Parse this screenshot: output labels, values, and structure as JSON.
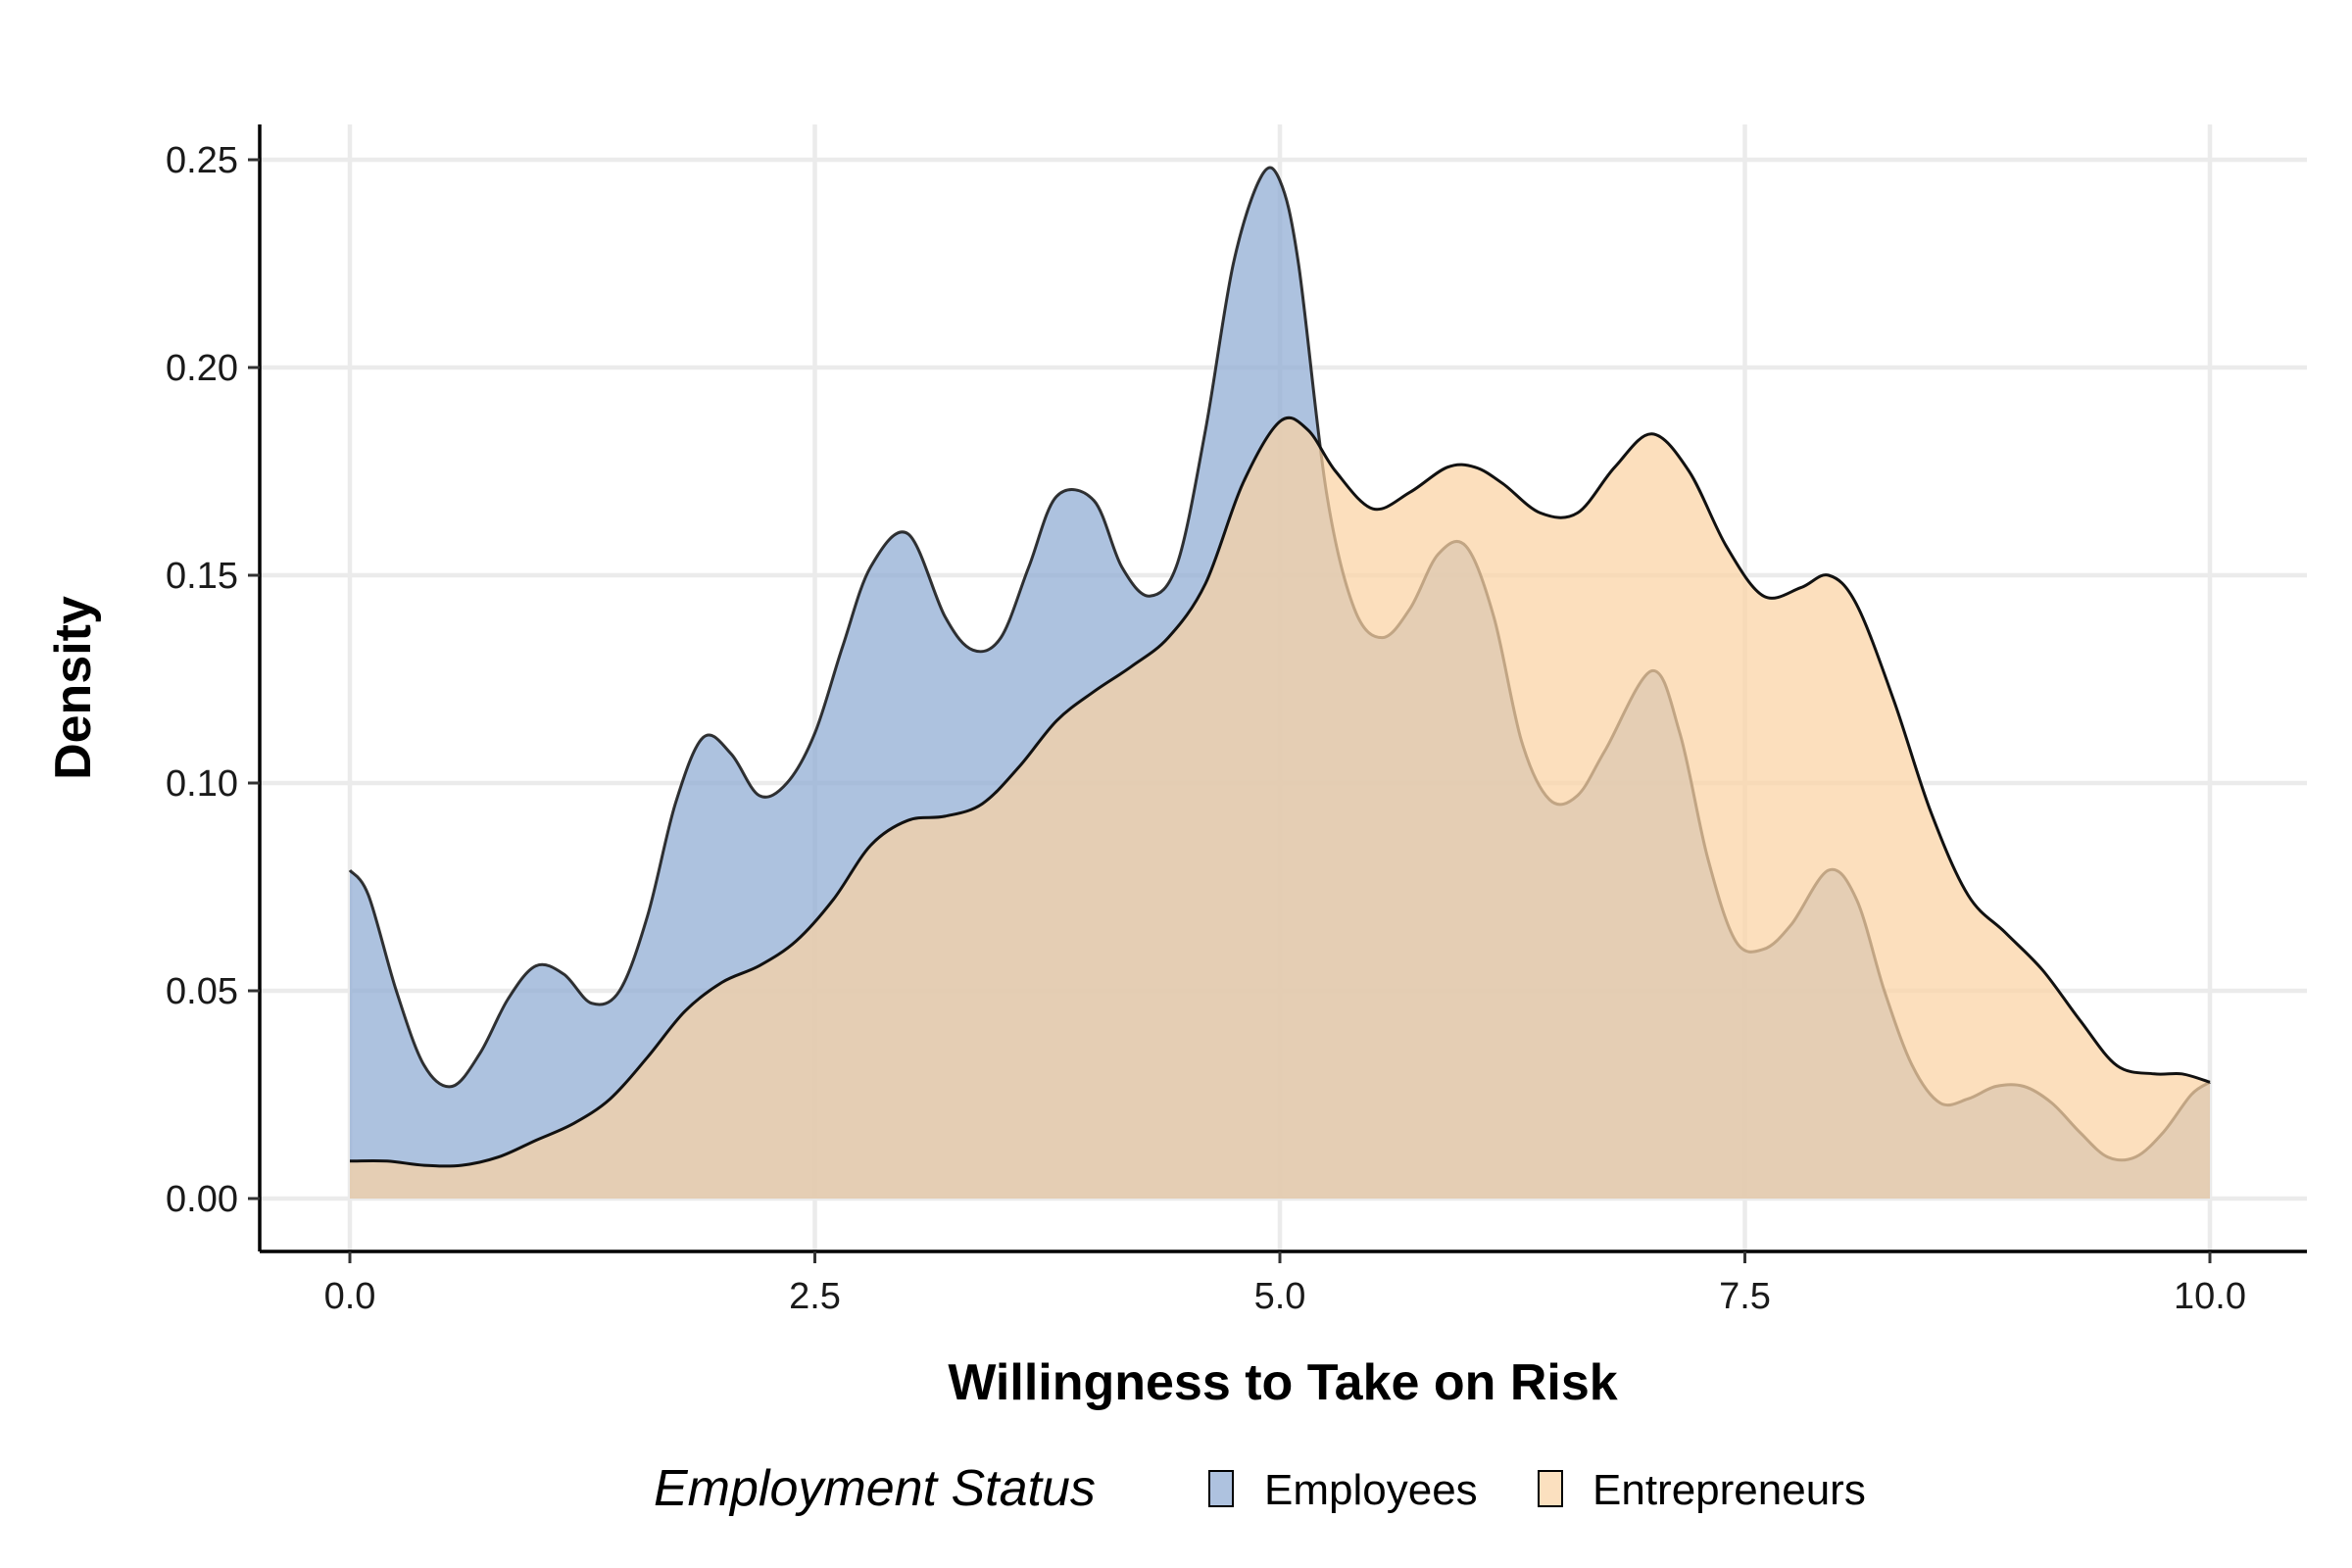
{
  "chart_data": {
    "type": "area",
    "xlabel": "Willingness to Take on Risk",
    "ylabel": "Density",
    "xlim": [
      0,
      10
    ],
    "ylim": [
      0,
      0.25
    ],
    "x_ticks": [
      0,
      2.5,
      5,
      7.5,
      10
    ],
    "x_tick_labels": [
      "0.0",
      "2.5",
      "5.0",
      "7.5",
      "10.0"
    ],
    "y_ticks": [
      0,
      0.05,
      0.1,
      0.15,
      0.2,
      0.25
    ],
    "y_tick_labels": [
      "0.00",
      "0.05",
      "0.10",
      "0.15",
      "0.20",
      "0.25"
    ],
    "grid": true,
    "legend": {
      "title": "Employment Status",
      "position": "bottom"
    },
    "series": [
      {
        "name": "Employees",
        "color": "#8eaad3",
        "x": [
          0,
          0.1,
          0.25,
          0.4,
          0.55,
          0.7,
          0.85,
          1.0,
          1.15,
          1.3,
          1.45,
          1.6,
          1.75,
          1.9,
          2.05,
          2.2,
          2.35,
          2.5,
          2.65,
          2.8,
          3.0,
          3.2,
          3.35,
          3.5,
          3.65,
          3.8,
          4.0,
          4.15,
          4.3,
          4.45,
          4.6,
          4.75,
          4.9,
          5.0,
          5.1,
          5.25,
          5.4,
          5.55,
          5.7,
          5.85,
          6.0,
          6.15,
          6.3,
          6.45,
          6.6,
          6.75,
          7.0,
          7.15,
          7.3,
          7.45,
          7.6,
          7.75,
          7.95,
          8.1,
          8.25,
          8.4,
          8.55,
          8.7,
          8.85,
          9.0,
          9.15,
          9.3,
          9.45,
          9.6,
          9.75,
          9.9,
          10.0
        ],
        "y": [
          0.079,
          0.073,
          0.05,
          0.032,
          0.027,
          0.035,
          0.048,
          0.056,
          0.054,
          0.047,
          0.05,
          0.068,
          0.095,
          0.111,
          0.107,
          0.097,
          0.1,
          0.112,
          0.133,
          0.152,
          0.16,
          0.14,
          0.132,
          0.135,
          0.152,
          0.169,
          0.168,
          0.152,
          0.145,
          0.153,
          0.185,
          0.225,
          0.246,
          0.245,
          0.225,
          0.17,
          0.142,
          0.135,
          0.142,
          0.155,
          0.157,
          0.14,
          0.11,
          0.096,
          0.097,
          0.108,
          0.127,
          0.112,
          0.082,
          0.062,
          0.06,
          0.066,
          0.079,
          0.072,
          0.05,
          0.032,
          0.023,
          0.024,
          0.027,
          0.027,
          0.023,
          0.016,
          0.01,
          0.01,
          0.016,
          0.025,
          0.028
        ]
      },
      {
        "name": "Entrepreneurs",
        "color": "#fbd3a3",
        "x": [
          0,
          0.2,
          0.4,
          0.6,
          0.8,
          1.0,
          1.2,
          1.4,
          1.6,
          1.8,
          2.0,
          2.2,
          2.4,
          2.6,
          2.8,
          3.0,
          3.2,
          3.4,
          3.6,
          3.8,
          4.0,
          4.2,
          4.4,
          4.6,
          4.8,
          5.0,
          5.15,
          5.3,
          5.5,
          5.7,
          5.9,
          6.05,
          6.2,
          6.4,
          6.6,
          6.8,
          7.0,
          7.2,
          7.4,
          7.6,
          7.8,
          7.95,
          8.1,
          8.3,
          8.5,
          8.7,
          8.9,
          9.1,
          9.3,
          9.5,
          9.7,
          9.85,
          10.0
        ],
        "y": [
          0.009,
          0.009,
          0.008,
          0.008,
          0.01,
          0.014,
          0.018,
          0.024,
          0.034,
          0.045,
          0.052,
          0.056,
          0.062,
          0.072,
          0.085,
          0.091,
          0.092,
          0.095,
          0.104,
          0.115,
          0.122,
          0.128,
          0.135,
          0.148,
          0.172,
          0.187,
          0.185,
          0.175,
          0.166,
          0.17,
          0.176,
          0.176,
          0.172,
          0.165,
          0.165,
          0.176,
          0.184,
          0.175,
          0.157,
          0.145,
          0.147,
          0.15,
          0.143,
          0.12,
          0.093,
          0.073,
          0.064,
          0.055,
          0.043,
          0.032,
          0.03,
          0.03,
          0.028
        ]
      }
    ]
  }
}
